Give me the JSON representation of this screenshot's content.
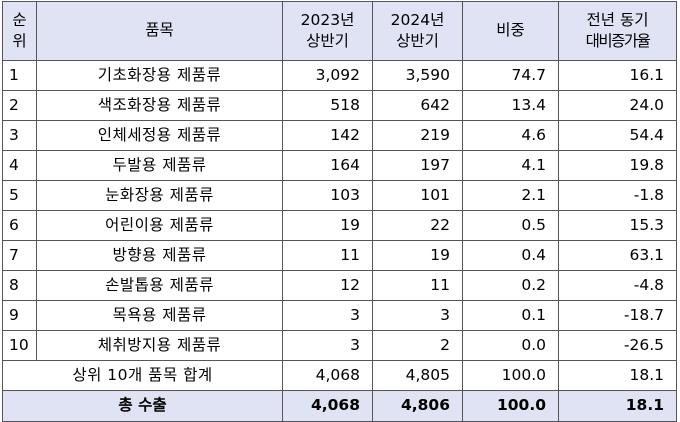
{
  "header": {
    "rank_top": "순",
    "rank_bottom": "위",
    "item": "품목",
    "y2023_top": "2023년",
    "y2023_bottom": "상반기",
    "y2024_top": "2024년",
    "y2024_bottom": "상반기",
    "share": "비중",
    "yoy_top": "전년 동기",
    "yoy_bottom": "대비증가율"
  },
  "rows": [
    {
      "rank": "1",
      "name": "기초화장용 제품류",
      "y2023": "3,092",
      "y2024": "3,590",
      "share": "74.7",
      "yoy": "16.1"
    },
    {
      "rank": "2",
      "name": "색조화장용 제품류",
      "y2023": "518",
      "y2024": "642",
      "share": "13.4",
      "yoy": "24.0"
    },
    {
      "rank": "3",
      "name": "인체세정용 제품류",
      "y2023": "142",
      "y2024": "219",
      "share": "4.6",
      "yoy": "54.4"
    },
    {
      "rank": "4",
      "name": "두발용 제품류",
      "y2023": "164",
      "y2024": "197",
      "share": "4.1",
      "yoy": "19.8"
    },
    {
      "rank": "5",
      "name": "눈화장용 제품류",
      "y2023": "103",
      "y2024": "101",
      "share": "2.1",
      "yoy": "-1.8"
    },
    {
      "rank": "6",
      "name": "어린이용 제품류",
      "y2023": "19",
      "y2024": "22",
      "share": "0.5",
      "yoy": "15.3"
    },
    {
      "rank": "7",
      "name": "방향용 제품류",
      "y2023": "11",
      "y2024": "19",
      "share": "0.4",
      "yoy": "63.1"
    },
    {
      "rank": "8",
      "name": "손발톱용 제품류",
      "y2023": "12",
      "y2024": "11",
      "share": "0.2",
      "yoy": "-4.8"
    },
    {
      "rank": "9",
      "name": "목욕용 제품류",
      "y2023": "3",
      "y2024": "3",
      "share": "0.1",
      "yoy": "-18.7"
    },
    {
      "rank": "10",
      "name": "체취방지용 제품류",
      "y2023": "3",
      "y2024": "2",
      "share": "0.0",
      "yoy": "-26.5"
    }
  ],
  "subtotal": {
    "label": "상위 10개 품목 합계",
    "y2023": "4,068",
    "y2024": "4,805",
    "share": "100.0",
    "yoy": "18.1"
  },
  "total": {
    "label": "총 수출",
    "y2023": "4,068",
    "y2024": "4,806",
    "share": "100.0",
    "yoy": "18.1"
  },
  "colors": {
    "header_bg": "#dfe3f3",
    "border": "#555555"
  }
}
